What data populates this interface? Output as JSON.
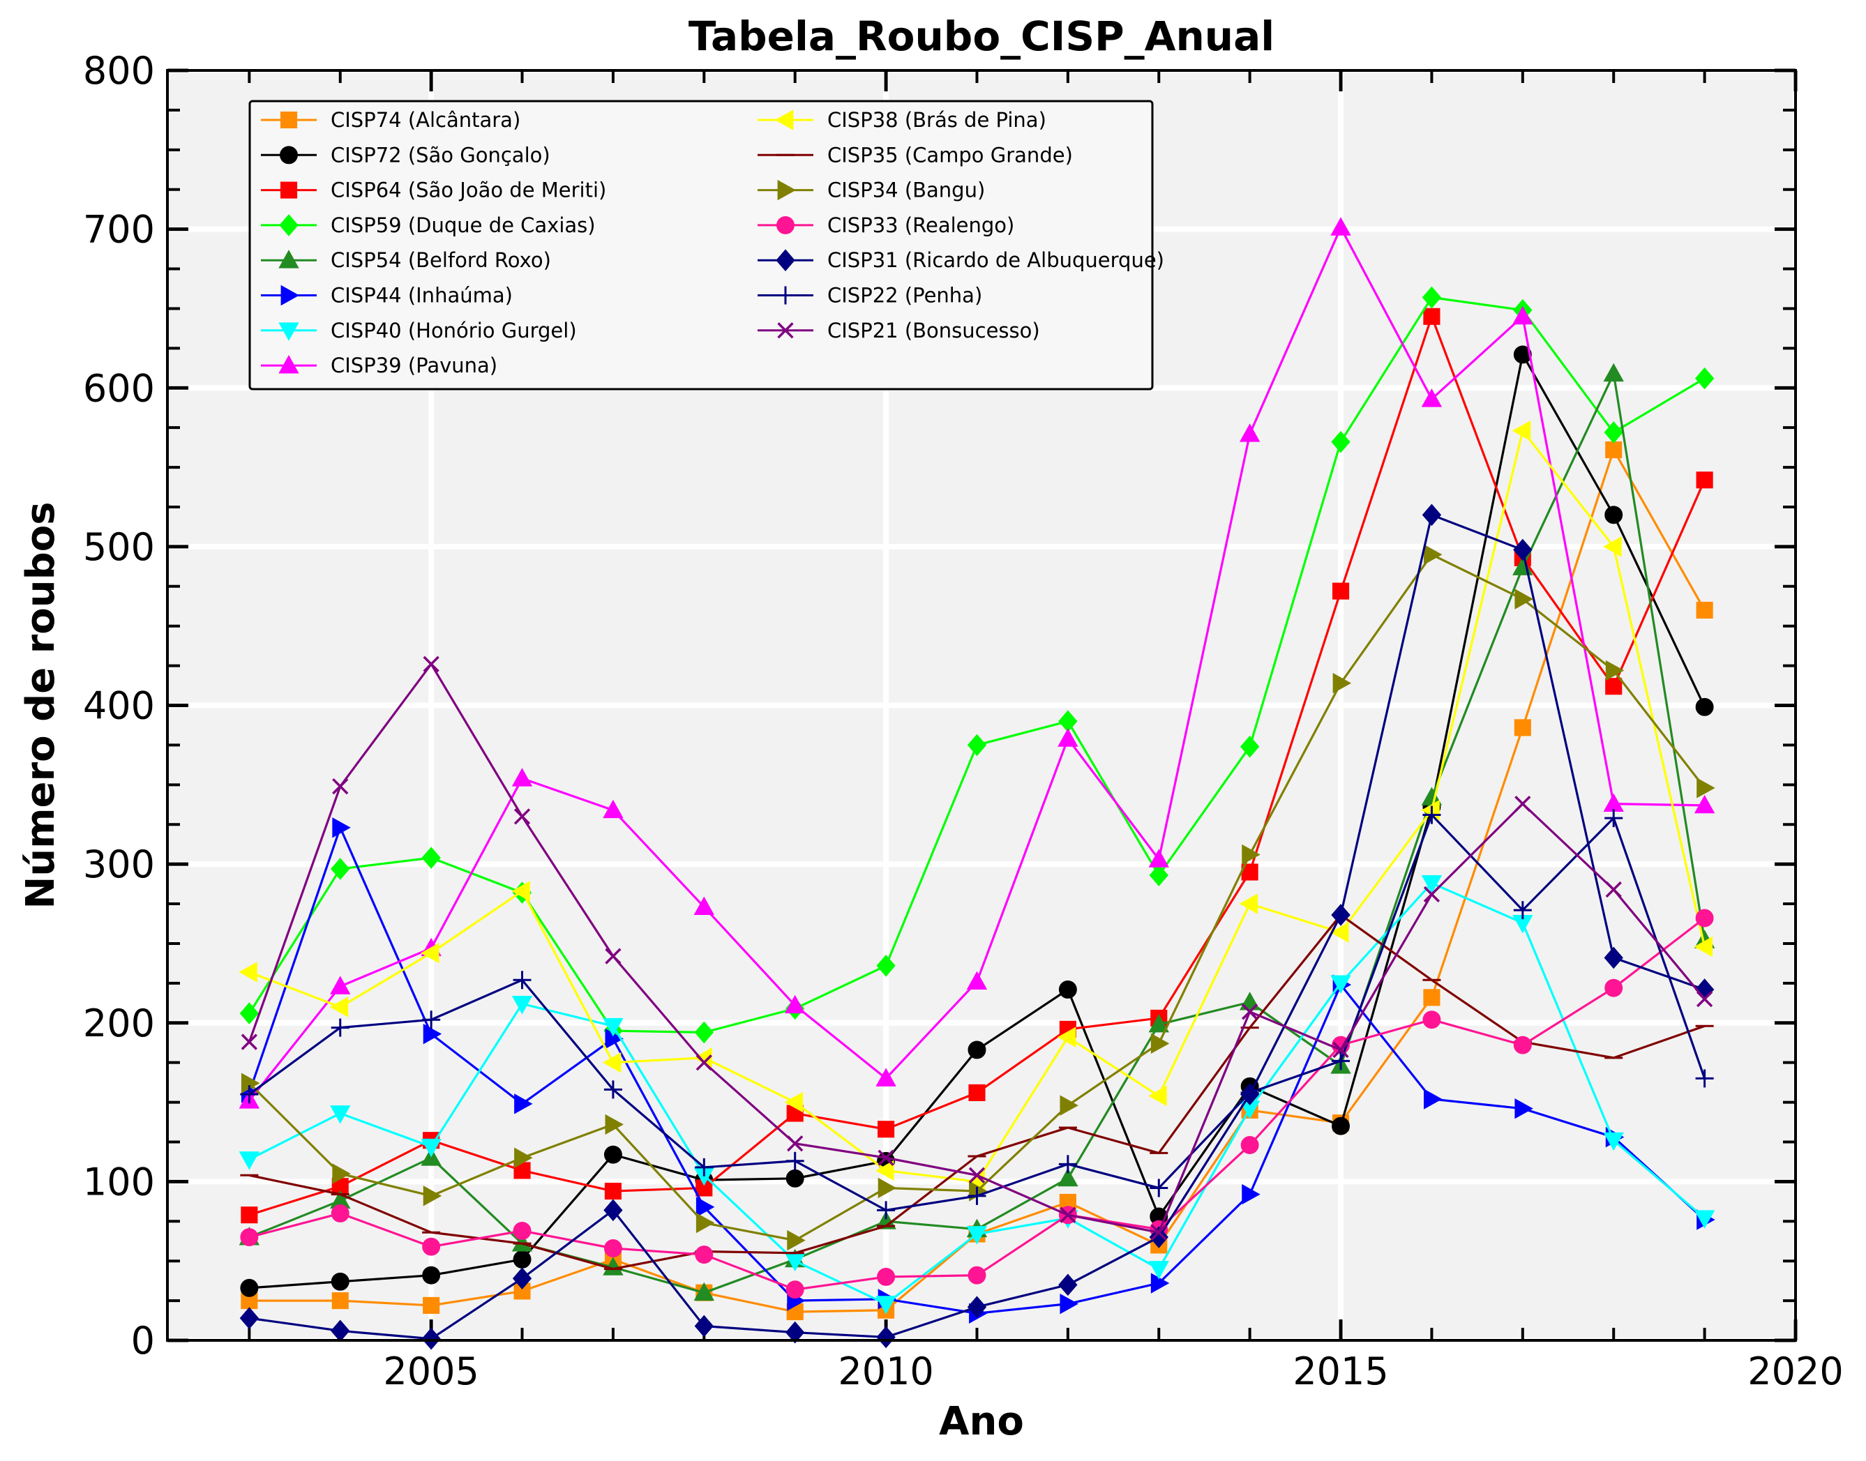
{
  "chart_data": {
    "type": "line",
    "title": "Tabela_Roubo_CISP_Anual",
    "xlabel": "Ano",
    "ylabel": "Número de roubos",
    "xlim": [
      2002.1,
      2020
    ],
    "ylim": [
      0,
      800
    ],
    "xticks": [
      2005,
      2010,
      2015,
      2020
    ],
    "yticks": [
      0,
      100,
      200,
      300,
      400,
      500,
      600,
      700,
      800
    ],
    "grid": true,
    "legend_position": "top-left",
    "x": [
      2003,
      2004,
      2005,
      2006,
      2007,
      2008,
      2009,
      2010,
      2011,
      2012,
      2013,
      2014,
      2015,
      2016,
      2017,
      2018,
      2019
    ],
    "series": [
      {
        "name": "CISP74 (Alcântara)",
        "color": "#ff8c00",
        "marker": "square",
        "values": [
          25,
          25,
          22,
          31,
          51,
          30,
          18,
          19,
          67,
          87,
          60,
          145,
          137,
          216,
          386,
          561,
          460
        ]
      },
      {
        "name": "CISP72 (São Gonçalo)",
        "color": "#000000",
        "marker": "circle",
        "values": [
          33,
          37,
          41,
          51,
          117,
          101,
          102,
          113,
          183,
          221,
          78,
          160,
          135,
          336,
          621,
          520,
          399
        ]
      },
      {
        "name": "CISP64 (São João de Meriti)",
        "color": "#ff0000",
        "marker": "square",
        "values": [
          79,
          97,
          126,
          107,
          94,
          96,
          143,
          133,
          156,
          196,
          203,
          295,
          472,
          645,
          493,
          412,
          542
        ]
      },
      {
        "name": "CISP59 (Duque de Caxias)",
        "color": "#00ff00",
        "marker": "diamond",
        "values": [
          206,
          297,
          304,
          282,
          195,
          194,
          209,
          236,
          375,
          390,
          293,
          374,
          566,
          657,
          649,
          572,
          606
        ]
      },
      {
        "name": "CISP54 (Belford Roxo)",
        "color": "#228b22",
        "marker": "triangle-up",
        "values": [
          65,
          88,
          115,
          61,
          46,
          30,
          51,
          75,
          70,
          102,
          199,
          213,
          173,
          342,
          487,
          609,
          252
        ]
      },
      {
        "name": "CISP44 (Inhaúma)",
        "color": "#0000ff",
        "marker": "triangle-right",
        "values": [
          156,
          323,
          193,
          149,
          190,
          84,
          25,
          26,
          17,
          23,
          36,
          92,
          224,
          152,
          146,
          128,
          76
        ]
      },
      {
        "name": "CISP40 (Honório Gurgel)",
        "color": "#00ffff",
        "marker": "triangle-down",
        "values": [
          114,
          143,
          122,
          212,
          198,
          104,
          50,
          23,
          67,
          77,
          45,
          146,
          225,
          288,
          263,
          126,
          77
        ]
      },
      {
        "name": "CISP39 (Pavuna)",
        "color": "#ff00ff",
        "marker": "triangle-up",
        "values": [
          151,
          223,
          247,
          354,
          334,
          273,
          211,
          165,
          226,
          379,
          303,
          571,
          701,
          593,
          645,
          338,
          337
        ]
      },
      {
        "name": "CISP38 (Brás de Pina)",
        "color": "#ffff00",
        "marker": "triangle-left",
        "values": [
          232,
          210,
          244,
          283,
          175,
          178,
          150,
          107,
          100,
          191,
          154,
          275,
          257,
          334,
          573,
          500,
          248
        ]
      },
      {
        "name": "CISP35 (Campo Grande)",
        "color": "#800000",
        "marker": "hline",
        "values": [
          104,
          92,
          68,
          61,
          45,
          56,
          55,
          72,
          116,
          134,
          118,
          197,
          268,
          227,
          188,
          178,
          198
        ]
      },
      {
        "name": "CISP34 (Bangu)",
        "color": "#808000",
        "marker": "triangle-right",
        "values": [
          162,
          105,
          91,
          115,
          136,
          74,
          63,
          96,
          94,
          148,
          187,
          306,
          414,
          495,
          467,
          422,
          348
        ]
      },
      {
        "name": "CISP33 (Realengo)",
        "color": "#ff1493",
        "marker": "circle",
        "values": [
          65,
          80,
          59,
          69,
          58,
          54,
          32,
          40,
          41,
          79,
          70,
          123,
          186,
          202,
          186,
          222,
          266
        ]
      },
      {
        "name": "CISP31 (Ricardo de Albuquerque)",
        "color": "#000080",
        "marker": "diamond",
        "values": [
          14,
          6,
          1,
          39,
          82,
          9,
          5,
          2,
          21,
          35,
          65,
          155,
          268,
          520,
          498,
          241,
          221
        ]
      },
      {
        "name": "CISP22 (Penha)",
        "color": "#000080",
        "marker": "plus",
        "values": [
          155,
          197,
          202,
          227,
          158,
          109,
          113,
          82,
          91,
          111,
          96,
          156,
          176,
          331,
          271,
          329,
          165
        ]
      },
      {
        "name": "CISP21 (Bonsucesso)",
        "color": "#800080",
        "marker": "x",
        "values": [
          188,
          349,
          426,
          330,
          242,
          175,
          124,
          115,
          104,
          79,
          68,
          207,
          183,
          281,
          338,
          284,
          215
        ]
      }
    ]
  }
}
